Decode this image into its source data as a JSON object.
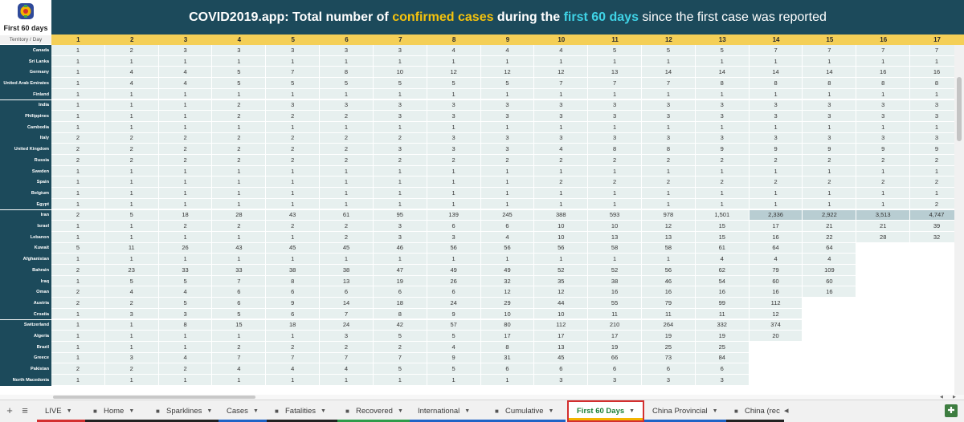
{
  "logo": {
    "title": "First 60 days",
    "subtitle": "Territory / Day"
  },
  "banner": {
    "p1": "COVID2019.app: Total number of ",
    "p2": "confirmed cases",
    "p3": " during the ",
    "p4": "first 60 days",
    "p5": " since the first case was reported"
  },
  "day_headers": [
    "1",
    "2",
    "3",
    "4",
    "5",
    "6",
    "7",
    "8",
    "9",
    "10",
    "11",
    "12",
    "13",
    "14",
    "15",
    "16",
    "17"
  ],
  "rows": [
    {
      "name": "Canada",
      "v": [
        "1",
        "2",
        "3",
        "3",
        "3",
        "3",
        "3",
        "4",
        "4",
        "4",
        "5",
        "5",
        "5",
        "7",
        "7",
        "7",
        "7"
      ]
    },
    {
      "name": "Sri Lanka",
      "v": [
        "1",
        "1",
        "1",
        "1",
        "1",
        "1",
        "1",
        "1",
        "1",
        "1",
        "1",
        "1",
        "1",
        "1",
        "1",
        "1",
        "1"
      ]
    },
    {
      "name": "Germany",
      "v": [
        "1",
        "4",
        "4",
        "5",
        "7",
        "8",
        "10",
        "12",
        "12",
        "12",
        "13",
        "14",
        "14",
        "14",
        "14",
        "16",
        "16"
      ]
    },
    {
      "name": "United Arab Emirates",
      "v": [
        "1",
        "4",
        "4",
        "5",
        "5",
        "5",
        "5",
        "5",
        "5",
        "7",
        "7",
        "7",
        "8",
        "8",
        "8",
        "8",
        "8"
      ]
    },
    {
      "name": "Finland",
      "v": [
        "1",
        "1",
        "1",
        "1",
        "1",
        "1",
        "1",
        "1",
        "1",
        "1",
        "1",
        "1",
        "1",
        "1",
        "1",
        "1",
        "1"
      ]
    },
    {
      "name": "India",
      "v": [
        "1",
        "1",
        "1",
        "2",
        "3",
        "3",
        "3",
        "3",
        "3",
        "3",
        "3",
        "3",
        "3",
        "3",
        "3",
        "3",
        "3"
      ]
    },
    {
      "name": "Philippines",
      "v": [
        "1",
        "1",
        "1",
        "2",
        "2",
        "2",
        "3",
        "3",
        "3",
        "3",
        "3",
        "3",
        "3",
        "3",
        "3",
        "3",
        "3"
      ]
    },
    {
      "name": "Cambodia",
      "v": [
        "1",
        "1",
        "1",
        "1",
        "1",
        "1",
        "1",
        "1",
        "1",
        "1",
        "1",
        "1",
        "1",
        "1",
        "1",
        "1",
        "1"
      ]
    },
    {
      "name": "Italy",
      "v": [
        "2",
        "2",
        "2",
        "2",
        "2",
        "2",
        "2",
        "3",
        "3",
        "3",
        "3",
        "3",
        "3",
        "3",
        "3",
        "3",
        "3"
      ]
    },
    {
      "name": "United Kingdom",
      "v": [
        "2",
        "2",
        "2",
        "2",
        "2",
        "2",
        "3",
        "3",
        "3",
        "4",
        "8",
        "8",
        "9",
        "9",
        "9",
        "9",
        "9"
      ]
    },
    {
      "name": "Russia",
      "v": [
        "2",
        "2",
        "2",
        "2",
        "2",
        "2",
        "2",
        "2",
        "2",
        "2",
        "2",
        "2",
        "2",
        "2",
        "2",
        "2",
        "2"
      ]
    },
    {
      "name": "Sweden",
      "v": [
        "1",
        "1",
        "1",
        "1",
        "1",
        "1",
        "1",
        "1",
        "1",
        "1",
        "1",
        "1",
        "1",
        "1",
        "1",
        "1",
        "1"
      ]
    },
    {
      "name": "Spain",
      "v": [
        "1",
        "1",
        "1",
        "1",
        "1",
        "1",
        "1",
        "1",
        "1",
        "2",
        "2",
        "2",
        "2",
        "2",
        "2",
        "2",
        "2"
      ]
    },
    {
      "name": "Belgium",
      "v": [
        "1",
        "1",
        "1",
        "1",
        "1",
        "1",
        "1",
        "1",
        "1",
        "1",
        "1",
        "1",
        "1",
        "1",
        "1",
        "1",
        "1"
      ]
    },
    {
      "name": "Egypt",
      "v": [
        "1",
        "1",
        "1",
        "1",
        "1",
        "1",
        "1",
        "1",
        "1",
        "1",
        "1",
        "1",
        "1",
        "1",
        "1",
        "1",
        "2"
      ]
    },
    {
      "name": "Iran",
      "v": [
        "2",
        "5",
        "18",
        "28",
        "43",
        "61",
        "95",
        "139",
        "245",
        "388",
        "593",
        "978",
        "1,501",
        "2,336",
        "2,922",
        "3,513",
        "4,747"
      ]
    },
    {
      "name": "Israel",
      "v": [
        "1",
        "1",
        "2",
        "2",
        "2",
        "2",
        "3",
        "6",
        "6",
        "10",
        "10",
        "12",
        "15",
        "17",
        "21",
        "21",
        "39"
      ]
    },
    {
      "name": "Lebanon",
      "v": [
        "1",
        "1",
        "1",
        "1",
        "1",
        "2",
        "3",
        "3",
        "4",
        "10",
        "13",
        "13",
        "15",
        "16",
        "22",
        "28",
        "32"
      ]
    },
    {
      "name": "Kuwait",
      "v": [
        "5",
        "11",
        "26",
        "43",
        "45",
        "45",
        "46",
        "56",
        "56",
        "56",
        "58",
        "58",
        "61",
        "64",
        "64",
        "",
        ""
      ]
    },
    {
      "name": "Afghanistan",
      "v": [
        "1",
        "1",
        "1",
        "1",
        "1",
        "1",
        "1",
        "1",
        "1",
        "1",
        "1",
        "1",
        "4",
        "4",
        "4",
        "",
        ""
      ]
    },
    {
      "name": "Bahrain",
      "v": [
        "2",
        "23",
        "33",
        "33",
        "38",
        "38",
        "47",
        "49",
        "49",
        "52",
        "52",
        "56",
        "62",
        "79",
        "109",
        "",
        ""
      ]
    },
    {
      "name": "Iraq",
      "v": [
        "1",
        "5",
        "5",
        "7",
        "8",
        "13",
        "19",
        "26",
        "32",
        "35",
        "38",
        "46",
        "54",
        "60",
        "60",
        "",
        ""
      ]
    },
    {
      "name": "Oman",
      "v": [
        "2",
        "4",
        "4",
        "6",
        "6",
        "6",
        "6",
        "6",
        "12",
        "12",
        "16",
        "16",
        "16",
        "16",
        "16",
        "",
        ""
      ]
    },
    {
      "name": "Austria",
      "v": [
        "2",
        "2",
        "5",
        "6",
        "9",
        "14",
        "18",
        "24",
        "29",
        "44",
        "55",
        "79",
        "99",
        "112",
        "",
        "",
        ""
      ]
    },
    {
      "name": "Croatia",
      "v": [
        "1",
        "3",
        "3",
        "5",
        "6",
        "7",
        "8",
        "9",
        "10",
        "10",
        "11",
        "11",
        "11",
        "12",
        "",
        "",
        ""
      ]
    },
    {
      "name": "Switzerland",
      "v": [
        "1",
        "1",
        "8",
        "15",
        "18",
        "24",
        "42",
        "57",
        "80",
        "112",
        "210",
        "264",
        "332",
        "374",
        "",
        "",
        ""
      ]
    },
    {
      "name": "Algeria",
      "v": [
        "1",
        "1",
        "1",
        "1",
        "1",
        "3",
        "5",
        "5",
        "17",
        "17",
        "17",
        "19",
        "19",
        "20",
        "",
        "",
        ""
      ]
    },
    {
      "name": "Brazil",
      "v": [
        "1",
        "1",
        "1",
        "2",
        "2",
        "2",
        "2",
        "4",
        "8",
        "13",
        "19",
        "25",
        "25",
        "",
        "",
        "",
        ""
      ]
    },
    {
      "name": "Greece",
      "v": [
        "1",
        "3",
        "4",
        "7",
        "7",
        "7",
        "7",
        "9",
        "31",
        "45",
        "66",
        "73",
        "84",
        "",
        "",
        "",
        ""
      ]
    },
    {
      "name": "Pakistan",
      "v": [
        "2",
        "2",
        "2",
        "4",
        "4",
        "4",
        "5",
        "5",
        "6",
        "6",
        "6",
        "6",
        "6",
        "",
        "",
        "",
        ""
      ]
    },
    {
      "name": "North Macedonia",
      "v": [
        "1",
        "1",
        "1",
        "1",
        "1",
        "1",
        "1",
        "1",
        "1",
        "3",
        "3",
        "3",
        "3",
        "",
        "",
        "",
        ""
      ]
    }
  ],
  "tabs": [
    {
      "label": "LIVE",
      "icon": "",
      "color": "#d32f2f"
    },
    {
      "label": "Home",
      "icon": "lock-icon",
      "color": "#222222"
    },
    {
      "label": "Sparklines",
      "icon": "lock-icon",
      "color": "#222222"
    },
    {
      "label": "Cases",
      "icon": "",
      "color": "#1e63c6"
    },
    {
      "label": "Fatalities",
      "icon": "lock-icon",
      "color": "#222222"
    },
    {
      "label": "Recovered",
      "icon": "lock-icon",
      "color": "#2e9b4a"
    },
    {
      "label": "International",
      "icon": "",
      "color": "#1e63c6"
    },
    {
      "label": "Cumulative",
      "icon": "lock-icon",
      "color": "#1e63c6"
    },
    {
      "label": "First 60 Days",
      "icon": "",
      "color": "#f4b400"
    },
    {
      "label": "China Provincial",
      "icon": "",
      "color": "#1e63c6"
    },
    {
      "label": "China (rec",
      "icon": "lock-icon",
      "color": "#222222"
    }
  ],
  "active_tab": "First 60 Days",
  "colors": {
    "banner": "#1c4a5b",
    "header_yellow": "#f4cf57",
    "cell": "#e7f0ef",
    "cell_highlight": "#b8cdd2",
    "active_tab_border": "#d32f2f"
  }
}
